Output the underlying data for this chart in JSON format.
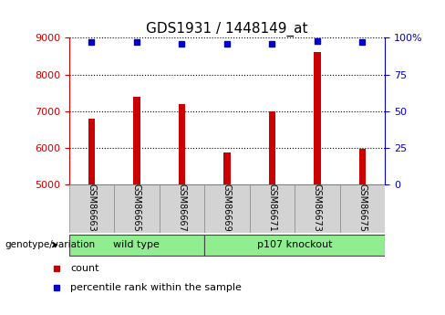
{
  "title": "GDS1931 / 1448149_at",
  "samples": [
    "GSM86663",
    "GSM86665",
    "GSM86667",
    "GSM86669",
    "GSM86671",
    "GSM86673",
    "GSM86675"
  ],
  "counts": [
    6800,
    7400,
    7200,
    5870,
    7000,
    8600,
    5970
  ],
  "percentile_ranks": [
    97,
    97,
    96,
    96,
    96,
    98,
    97
  ],
  "ylim_left": [
    5000,
    9000
  ],
  "ylim_right": [
    0,
    100
  ],
  "yticks_left": [
    5000,
    6000,
    7000,
    8000,
    9000
  ],
  "yticks_right": [
    0,
    25,
    50,
    75,
    100
  ],
  "bar_color": "#cc0000",
  "dot_color": "#0000cc",
  "bar_width": 0.15,
  "groups": [
    {
      "label": "wild type",
      "indices": [
        0,
        1,
        2
      ],
      "color": "#90ee90"
    },
    {
      "label": "p107 knockout",
      "indices": [
        3,
        4,
        5,
        6
      ],
      "color": "#90ee90"
    }
  ],
  "group_label": "genotype/variation",
  "legend_count_label": "count",
  "legend_pct_label": "percentile rank within the sample",
  "title_fontsize": 11,
  "tick_fontsize": 8,
  "label_fontsize": 8,
  "grid_color": "#000000",
  "left_tick_color": "#cc0000",
  "right_tick_color": "#0000cc",
  "background_label": "#d3d3d3",
  "background_group_wt": "#b8f0b8",
  "background_group_ko": "#90ee90"
}
